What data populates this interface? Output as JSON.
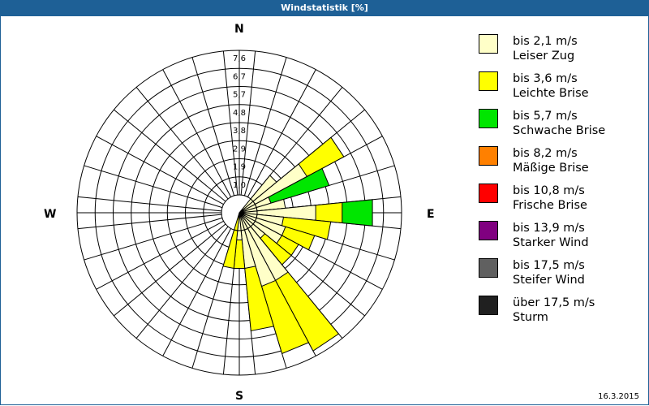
{
  "header": {
    "title": "Windstatistik [%]"
  },
  "footer": {
    "date": "16.3.2015"
  },
  "compass": {
    "n": "N",
    "e": "E",
    "s": "S",
    "w": "W"
  },
  "legend": [
    {
      "range": "bis 2,1 m/s",
      "name": "Leiser Zug",
      "color": "#ffffc8"
    },
    {
      "range": "bis 3,6 m/s",
      "name": "Leichte Brise",
      "color": "#ffff00"
    },
    {
      "range": "bis 5,7 m/s",
      "name": "Schwache Brise",
      "color": "#00e600"
    },
    {
      "range": "bis 8,2 m/s",
      "name": "Mäßige Brise",
      "color": "#ff8000"
    },
    {
      "range": "bis 10,8 m/s",
      "name": "Frische Brise",
      "color": "#ff0000"
    },
    {
      "range": "bis 13,9 m/s",
      "name": "Starker Wind",
      "color": "#800080"
    },
    {
      "range": "bis 17,5 m/s",
      "name": "Steifer Wind",
      "color": "#606060"
    },
    {
      "range": "über 17,5 m/s",
      "name": "Sturm",
      "color": "#202020"
    }
  ],
  "chart_data": {
    "type": "wind-rose",
    "title": "Windstatistik [%]",
    "sectors": 32,
    "ring_labels": [
      "1,0",
      "1,9",
      "2,9",
      "3,8",
      "4,8",
      "5,7",
      "6,7",
      "7,6"
    ],
    "rmax": 7.6,
    "series_names": [
      "bis 2,1 m/s",
      "bis 3,6 m/s",
      "bis 5,7 m/s"
    ],
    "data": [
      {
        "dir_deg": 45.0,
        "cumulative": [
          1.6
        ]
      },
      {
        "dir_deg": 56.25,
        "cumulative": [
          3.1,
          5.3
        ]
      },
      {
        "dir_deg": 67.5,
        "cumulative": [
          0.8,
          0.8,
          4.0
        ]
      },
      {
        "dir_deg": 78.75,
        "cumulative": [
          1.5
        ]
      },
      {
        "dir_deg": 90.0,
        "cumulative": [
          3.1,
          4.5,
          6.1
        ]
      },
      {
        "dir_deg": 101.25,
        "cumulative": [
          1.4,
          3.9
        ]
      },
      {
        "dir_deg": 112.5,
        "cumulative": [
          1.6,
          3.2
        ]
      },
      {
        "dir_deg": 123.75,
        "cumulative": [
          1.6,
          2.6
        ]
      },
      {
        "dir_deg": 135.0,
        "cumulative": [
          0.8,
          2.6
        ]
      },
      {
        "dir_deg": 146.25,
        "cumulative": [
          3.1,
          7.3
        ]
      },
      {
        "dir_deg": 157.5,
        "cumulative": [
          3.1,
          6.8
        ]
      },
      {
        "dir_deg": 168.75,
        "cumulative": [
          2.0,
          5.3
        ]
      },
      {
        "dir_deg": 180.0,
        "cumulative": [
          0.5,
          2.0
        ]
      },
      {
        "dir_deg": 191.25,
        "cumulative": [
          0,
          2.0
        ]
      }
    ]
  }
}
